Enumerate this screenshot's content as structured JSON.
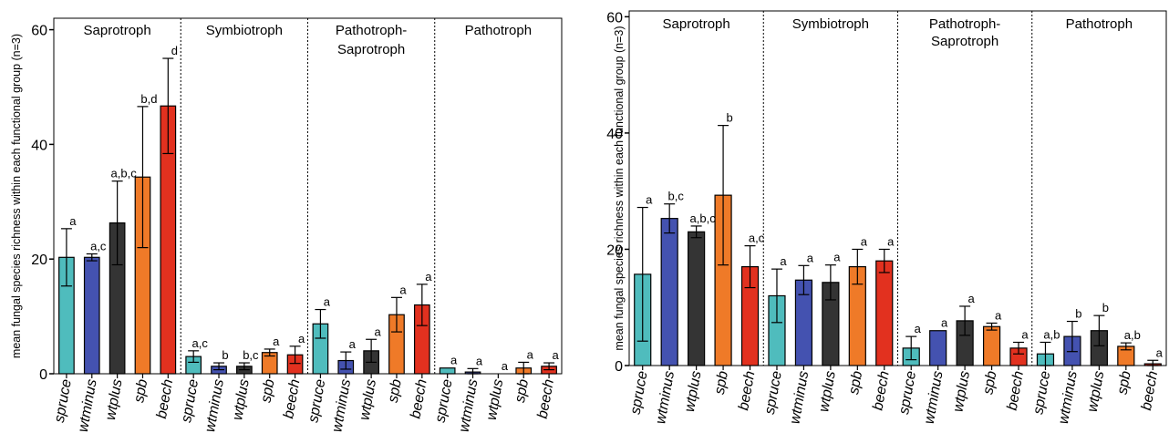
{
  "chart_data": [
    {
      "type": "bar",
      "ylabel": "mean fungal species richness within each functional group (n=3)",
      "ylim": [
        0,
        62
      ],
      "yticks": [
        0,
        20,
        40,
        60
      ],
      "categories": [
        "spruce",
        "wtminus",
        "wtplus",
        "spb",
        "beech"
      ],
      "groups": [
        {
          "label": "Saprotroph",
          "values": [
            20.3,
            20.3,
            26.3,
            34.3,
            46.7
          ],
          "errors": [
            5,
            0.6,
            7.3,
            12.3,
            8.3
          ],
          "letters": [
            "a",
            "a,c",
            "a,b,c",
            "b,d",
            "d"
          ]
        },
        {
          "label": "Symbiotroph",
          "values": [
            3,
            1.3,
            1.3,
            3.7,
            3.3
          ],
          "errors": [
            1,
            0.6,
            0.6,
            0.6,
            1.5
          ],
          "letters": [
            "a,c",
            "b",
            "b,c",
            "a",
            "a"
          ]
        },
        {
          "label": "Pathotroph-\nSaprotroph",
          "values": [
            8.7,
            2.3,
            4,
            10.3,
            12
          ],
          "errors": [
            2.5,
            1.5,
            2,
            3,
            3.6
          ],
          "letters": [
            "a",
            "a",
            "a",
            "a",
            "a"
          ]
        },
        {
          "label": "Pathotroph",
          "values": [
            1,
            0.3,
            0,
            1,
            1.3
          ],
          "errors": [
            0,
            0.6,
            0,
            1,
            0.6
          ],
          "letters": [
            "a",
            "a",
            "a",
            "a",
            "a"
          ]
        }
      ]
    },
    {
      "type": "bar",
      "ylabel": "mean fungal species richness within each functional group (n=3)",
      "ylim": [
        0,
        61
      ],
      "yticks": [
        0,
        20,
        40,
        60
      ],
      "categories": [
        "spruce",
        "wtminus",
        "wtplus",
        "spb",
        "beech"
      ],
      "groups": [
        {
          "label": "Saprotroph",
          "values": [
            15.7,
            25.3,
            23,
            29.3,
            17
          ],
          "errors": [
            11.5,
            2.5,
            1,
            12,
            3.6
          ],
          "letters": [
            "a",
            "b,c",
            "a,b,c",
            "b",
            "a,c"
          ]
        },
        {
          "label": "Symbiotroph",
          "values": [
            12,
            14.7,
            14.3,
            17,
            18
          ],
          "errors": [
            4.6,
            2.5,
            3,
            3,
            2
          ],
          "letters": [
            "a",
            "a",
            "a",
            "a",
            "a"
          ]
        },
        {
          "label": "Pathotroph-\nSaprotroph",
          "values": [
            3,
            6,
            7.7,
            6.7,
            3
          ],
          "errors": [
            2,
            0,
            2.5,
            0.6,
            1
          ],
          "letters": [
            "a",
            "a",
            "a",
            "a",
            "a"
          ]
        },
        {
          "label": "Pathotroph",
          "values": [
            2,
            5,
            6,
            3.3,
            0.3
          ],
          "errors": [
            2,
            2.6,
            2.6,
            0.6,
            0.6
          ],
          "letters": [
            "a,b",
            "b",
            "b",
            "a,b",
            "a"
          ]
        }
      ]
    }
  ],
  "colors": {
    "spruce": "#4fbcbd",
    "wtminus": "#4452b0",
    "wtplus": "#343434",
    "spb": "#ef7a28",
    "beech": "#e2311f"
  }
}
